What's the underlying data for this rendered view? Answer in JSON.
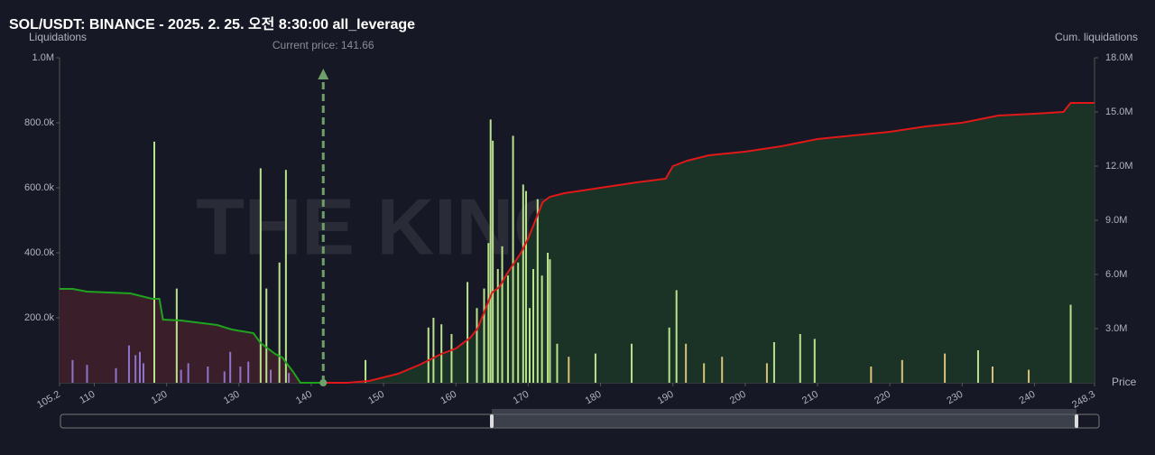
{
  "chart_data": {
    "type": "liquidation",
    "title": "SOL/USDT: BINANCE - 2025. 2. 25. 오전 8:30:00 all_leverage",
    "y_label": "Liquidations",
    "y2_label": "Cum. liquidations",
    "x_label": "Price",
    "watermark": "THE KINGFISHER.io",
    "annotation": "Current price: 141.66",
    "current_price": 141.66,
    "xlim": [
      105.2,
      248.3
    ],
    "xticks": [
      105.2,
      110,
      120,
      130,
      140,
      150,
      160,
      170,
      180,
      190,
      200,
      210,
      220,
      230,
      240,
      248.3
    ],
    "ylim": [
      0,
      1000000
    ],
    "yticks": [
      {
        "value": 200000,
        "label": "200.0k"
      },
      {
        "value": 400000,
        "label": "400.0k"
      },
      {
        "value": 600000,
        "label": "600.0k"
      },
      {
        "value": 800000,
        "label": "800.0k"
      },
      {
        "value": 1000000,
        "label": "1.0M"
      }
    ],
    "y2lim": [
      0,
      18000000
    ],
    "y2ticks": [
      {
        "value": 3000000,
        "label": "3.0M"
      },
      {
        "value": 6000000,
        "label": "6.0M"
      },
      {
        "value": 9000000,
        "label": "9.0M"
      },
      {
        "value": 12000000,
        "label": "12.0M"
      },
      {
        "value": 15000000,
        "label": "15.0M"
      },
      {
        "value": 18000000,
        "label": "18.0M"
      }
    ],
    "series": [
      {
        "kind": "bar",
        "color": "#8e74c9",
        "x": [
          107,
          109,
          113,
          114.8,
          115.7,
          116.3,
          116.8,
          122,
          123,
          125.7,
          128,
          128.8,
          130.2,
          131.3,
          134.4,
          136.9
        ],
        "values": [
          70000,
          55000,
          45000,
          115000,
          85000,
          95000,
          60000,
          40000,
          60000,
          50000,
          35000,
          95000,
          50000,
          65000,
          40000,
          30000
        ]
      },
      {
        "kind": "bar",
        "color": "#b9e28c",
        "x": [
          118.3,
          121.4,
          133,
          133.8,
          135.6,
          136.5,
          147.5,
          156.2,
          156.9,
          158,
          159.4,
          161.6,
          162.9,
          163.9,
          164.5,
          164.8,
          165.1,
          165.8,
          166.4,
          167.2,
          167.9,
          168.6,
          169.3,
          169.7,
          170.2,
          170.7,
          171.3,
          171.9,
          172.7,
          173,
          174,
          179.3,
          184.3,
          189.5,
          190.5,
          204,
          207.6,
          209.6,
          232.2,
          245
        ],
        "values": [
          742000,
          290000,
          660000,
          290000,
          370000,
          655000,
          70000,
          170000,
          200000,
          180000,
          150000,
          310000,
          230000,
          290000,
          430000,
          810000,
          745000,
          350000,
          420000,
          330000,
          760000,
          370000,
          610000,
          590000,
          230000,
          350000,
          565000,
          330000,
          400000,
          380000,
          120000,
          90000,
          120000,
          170000,
          285000,
          125000,
          150000,
          135000,
          100000,
          240000
        ]
      },
      {
        "kind": "bar",
        "color": "#d9c275",
        "x": [
          175.6,
          191.8,
          194.3,
          196.8,
          203,
          217.4,
          221.7,
          227.6,
          234.2,
          239.2
        ],
        "values": [
          80000,
          120000,
          60000,
          80000,
          60000,
          50000,
          70000,
          90000,
          50000,
          40000
        ]
      },
      {
        "kind": "line",
        "axis": "y2",
        "color": "#1fa31f",
        "fill": "#3a1f2b",
        "x": [
          105.2,
          107,
          109,
          112,
          115,
          118,
          119,
          119.5,
          122,
          125,
          127,
          129,
          132,
          133,
          135,
          136,
          137.5,
          138.5,
          141.66
        ],
        "values": [
          5200000,
          5200000,
          5050000,
          5000000,
          4950000,
          4650000,
          4650000,
          3500000,
          3450000,
          3300000,
          3200000,
          2950000,
          2750000,
          2200000,
          1600000,
          1400000,
          600000,
          0,
          0
        ]
      },
      {
        "kind": "line",
        "axis": "y2",
        "color": "#e01818",
        "fill": "#1a3326",
        "x": [
          141.66,
          145,
          148,
          150,
          152,
          155,
          158,
          160,
          162,
          163,
          164,
          165,
          166,
          167,
          168,
          169,
          170,
          171,
          172,
          173,
          175,
          180,
          185,
          189,
          190,
          192,
          195,
          200,
          205,
          210,
          215,
          220,
          225,
          230,
          235,
          240,
          244,
          245,
          248.3
        ],
        "values": [
          0,
          0,
          100000,
          300000,
          500000,
          1000000,
          1600000,
          1900000,
          2500000,
          3000000,
          4000000,
          5000000,
          5300000,
          6000000,
          6600000,
          7200000,
          8000000,
          9000000,
          10000000,
          10300000,
          10500000,
          10800000,
          11100000,
          11300000,
          12000000,
          12300000,
          12600000,
          12800000,
          13100000,
          13500000,
          13700000,
          13900000,
          14200000,
          14400000,
          14800000,
          14900000,
          15000000,
          15500000,
          15500000
        ]
      }
    ]
  }
}
